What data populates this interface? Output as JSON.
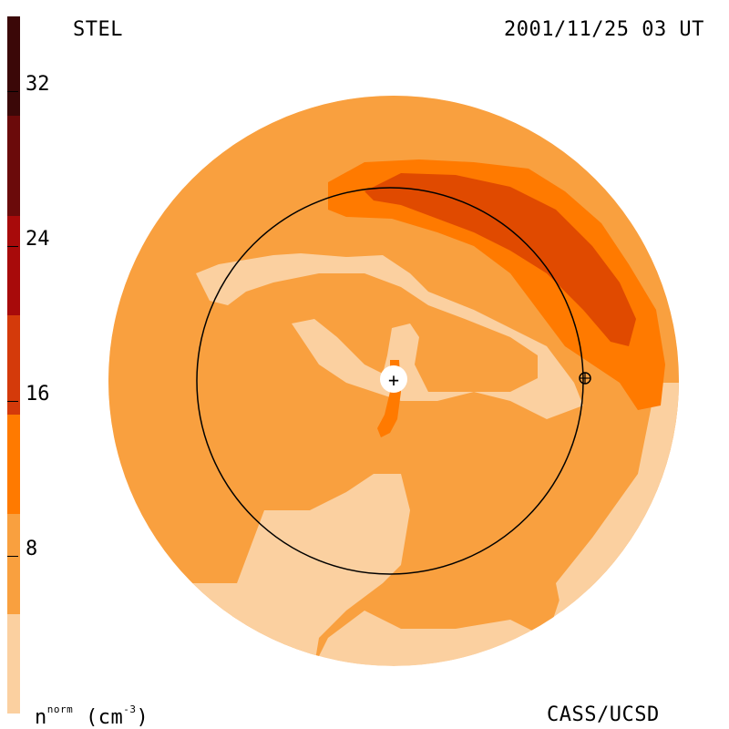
{
  "header": {
    "source": "STEL",
    "timestamp": "2001/11/25 03 UT"
  },
  "footer": {
    "credit": "CASS/UCSD",
    "unit_base": "n",
    "unit_sup": "norm",
    "unit_paren": "(cm",
    "unit_exp": "-3",
    "unit_close": ")"
  },
  "colorbar": {
    "ticks": [
      "32",
      "24",
      "16",
      "8"
    ],
    "levels": [
      "#3b0808",
      "#6b0a0a",
      "#a80a0a",
      "#d43a0a",
      "#ff7a00",
      "#f9a03f",
      "#fbd0a0"
    ]
  },
  "map": {
    "center_marker": "+",
    "colors": {
      "background": "#fbd0a0",
      "base": "#f9a03f",
      "enhanced": "#ff7a00",
      "high": "#e04a00",
      "ring": "#000000"
    }
  }
}
